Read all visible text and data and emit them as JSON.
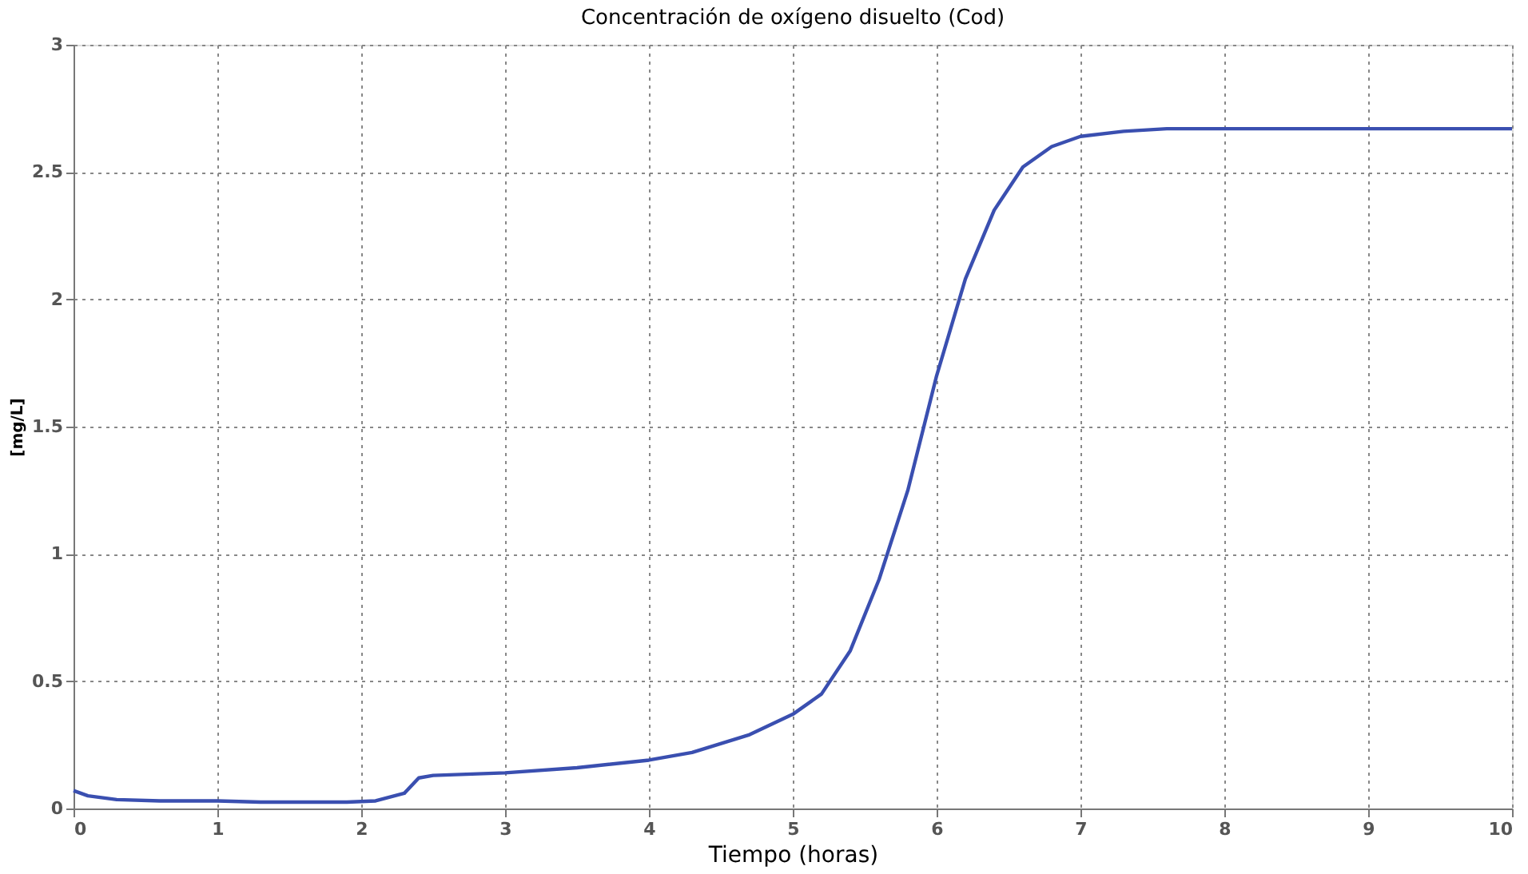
{
  "chart_data": {
    "type": "line",
    "title": "Concentración de oxígeno disuelto (Cod)",
    "xlabel": "Tiempo (horas)",
    "ylabel": "[mg/L]",
    "x": [
      0,
      0.1,
      0.3,
      0.6,
      1,
      1.3,
      1.9,
      2.1,
      2.3,
      2.4,
      2.5,
      3,
      3.5,
      4,
      4.3,
      4.7,
      5,
      5.2,
      5.4,
      5.6,
      5.8,
      6,
      6.2,
      6.4,
      6.6,
      6.8,
      7,
      7.3,
      7.6,
      10
    ],
    "series": [
      {
        "color": "#3a4fb0",
        "values": [
          0.07,
          0.05,
          0.035,
          0.03,
          0.03,
          0.025,
          0.025,
          0.03,
          0.06,
          0.12,
          0.13,
          0.14,
          0.16,
          0.19,
          0.22,
          0.29,
          0.37,
          0.45,
          0.62,
          0.9,
          1.25,
          1.7,
          2.08,
          2.35,
          2.52,
          2.6,
          2.64,
          2.66,
          2.67,
          2.67
        ]
      }
    ],
    "xlim": [
      0,
      10
    ],
    "xticks": [
      0,
      1,
      2,
      3,
      4,
      5,
      6,
      7,
      8,
      9,
      10
    ],
    "ylim": [
      0,
      3
    ],
    "yticks": [
      0,
      0.5,
      1,
      1.5,
      2,
      2.5,
      3
    ],
    "grid": true,
    "marker": "none",
    "line_style": "solid"
  }
}
